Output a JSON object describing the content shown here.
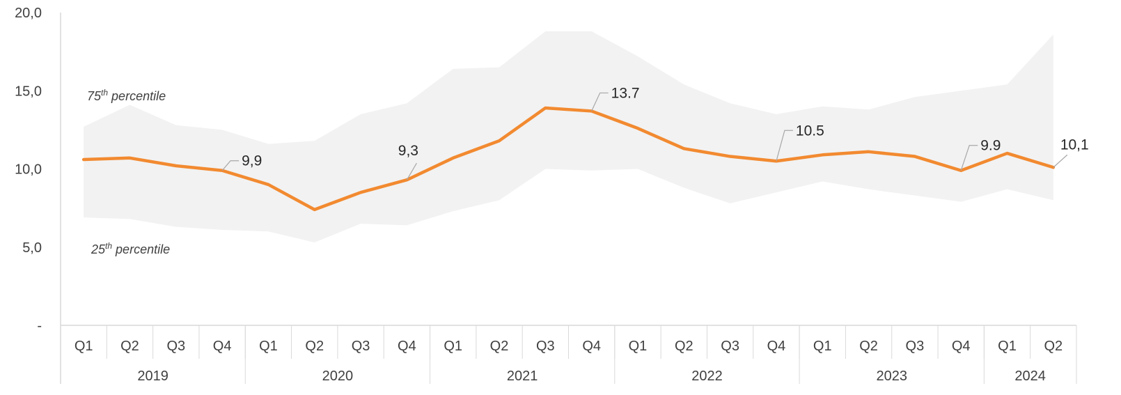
{
  "colors": {
    "line": "#F28A30",
    "band": "#F2F2F2",
    "axis": "#D9D9D9",
    "leader": "#A6A6A6",
    "text": "#404040"
  },
  "chart_data": {
    "type": "line",
    "quarters": [
      "Q1",
      "Q2",
      "Q3",
      "Q4",
      "Q1",
      "Q2",
      "Q3",
      "Q4",
      "Q1",
      "Q2",
      "Q3",
      "Q4",
      "Q1",
      "Q2",
      "Q3",
      "Q4",
      "Q1",
      "Q2",
      "Q3",
      "Q4",
      "Q1",
      "Q2"
    ],
    "years": [
      {
        "label": "2019",
        "span": 4
      },
      {
        "label": "2020",
        "span": 4
      },
      {
        "label": "2021",
        "span": 4
      },
      {
        "label": "2022",
        "span": 4
      },
      {
        "label": "2023",
        "span": 4
      },
      {
        "label": "2024",
        "span": 2
      }
    ],
    "series": [
      {
        "values": [
          10.6,
          10.7,
          10.2,
          9.9,
          9.0,
          7.4,
          8.5,
          9.3,
          10.7,
          11.8,
          13.9,
          13.7,
          12.6,
          11.3,
          10.8,
          10.5,
          10.9,
          11.1,
          10.8,
          9.9,
          11.0,
          10.1
        ]
      }
    ],
    "band": {
      "upper_label": "percentile",
      "upper_rank": "75",
      "lower_label": "percentile",
      "lower_rank": "25",
      "suffix": "th",
      "upper": [
        12.7,
        14.1,
        12.8,
        12.5,
        11.6,
        11.8,
        13.5,
        14.2,
        16.4,
        16.5,
        18.8,
        18.8,
        17.2,
        15.4,
        14.2,
        13.5,
        14.0,
        13.8,
        14.6,
        15.0,
        15.4,
        18.6
      ],
      "lower": [
        6.9,
        6.8,
        6.3,
        6.1,
        6.0,
        5.3,
        6.5,
        6.4,
        7.3,
        8.0,
        10.0,
        9.9,
        10.0,
        8.8,
        7.8,
        8.5,
        9.2,
        8.7,
        8.3,
        7.9,
        8.7,
        8.0
      ]
    },
    "data_labels": [
      {
        "index": 3,
        "text": "9,9"
      },
      {
        "index": 7,
        "text": "9,3"
      },
      {
        "index": 11,
        "text": "13.7"
      },
      {
        "index": 15,
        "text": "10.5"
      },
      {
        "index": 19,
        "text": "9.9"
      },
      {
        "index": 21,
        "text": "10,1"
      }
    ],
    "y_ticks": [
      {
        "value": 0,
        "label": "-"
      },
      {
        "value": 5,
        "label": "5,0"
      },
      {
        "value": 10,
        "label": "10,0"
      },
      {
        "value": 15,
        "label": "15,0"
      },
      {
        "value": 20,
        "label": "20,0"
      }
    ],
    "ylim": [
      0,
      20
    ],
    "grid": false
  }
}
